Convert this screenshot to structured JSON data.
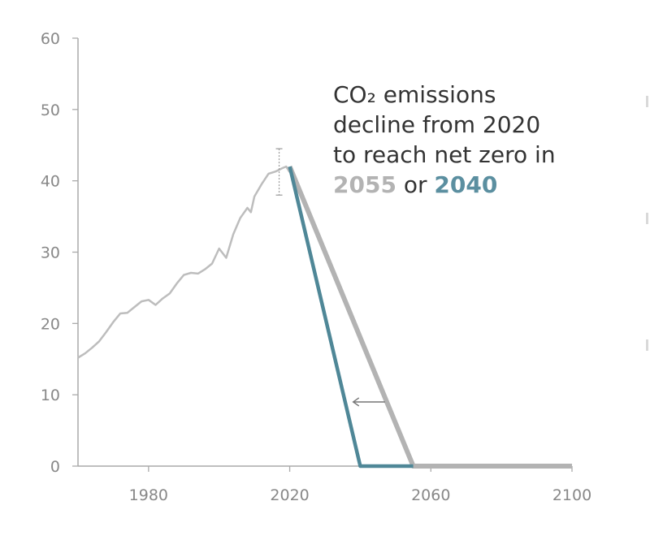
{
  "annotation": {
    "line1": "CO₂ emissions",
    "line2": "decline from 2020",
    "line3": "to reach net zero in",
    "year_a": "2055",
    "connector": " or ",
    "year_b": "2040"
  },
  "colors": {
    "historical": "#bdbdbd",
    "scenario_2055": "#b3b3b3",
    "scenario_2040": "#4f8797",
    "axis": "#aaaaaa",
    "text": "#333333"
  },
  "chart_data": {
    "type": "line",
    "title": "",
    "xlabel": "",
    "ylabel": "",
    "xlim": [
      1960,
      2100
    ],
    "ylim": [
      0,
      60
    ],
    "xticks": [
      1980,
      2020,
      2060,
      2100
    ],
    "yticks": [
      0,
      10,
      20,
      30,
      40,
      50,
      60
    ],
    "grid": false,
    "series": [
      {
        "key": "historical",
        "x": [
          1960,
          1962,
          1964,
          1966,
          1968,
          1970,
          1972,
          1974,
          1976,
          1978,
          1980,
          1982,
          1984,
          1986,
          1988,
          1990,
          1992,
          1994,
          1996,
          1998,
          2000,
          2002,
          2004,
          2006,
          2008,
          2009,
          2010,
          2012,
          2014,
          2016,
          2018,
          2019,
          2020
        ],
        "values": [
          15.2,
          15.8,
          16.6,
          17.5,
          18.8,
          20.2,
          21.4,
          21.5,
          22.3,
          23.1,
          23.3,
          22.6,
          23.5,
          24.2,
          25.6,
          26.8,
          27.1,
          27.0,
          27.6,
          28.4,
          30.5,
          29.2,
          32.5,
          34.8,
          36.2,
          35.6,
          37.8,
          39.5,
          41.0,
          41.3,
          41.8,
          42.0,
          41.2
        ]
      },
      {
        "key": "scenario_2055",
        "x": [
          2020,
          2055,
          2100
        ],
        "values": [
          42,
          0,
          0
        ]
      },
      {
        "key": "scenario_2040",
        "x": [
          2020,
          2040,
          2055
        ],
        "values": [
          42,
          0,
          0
        ]
      }
    ],
    "error_bar": {
      "x": 2017,
      "low": 38,
      "high": 44.5
    },
    "arrow": {
      "x_from": 2047,
      "x_to": 2038,
      "y": 9
    }
  }
}
